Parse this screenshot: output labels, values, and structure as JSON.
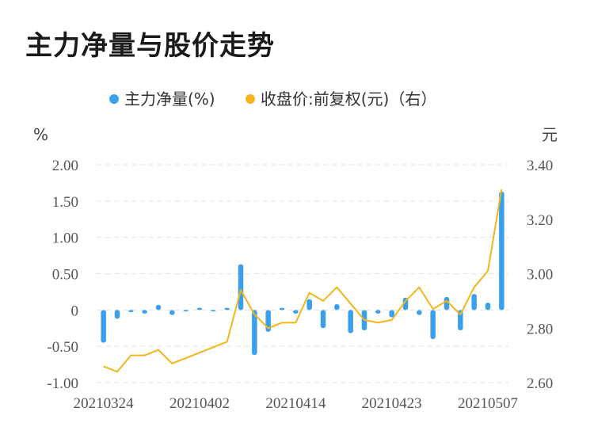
{
  "title": "主力净量与股价走势",
  "legend": {
    "net": "主力净量(%)",
    "price": "收盘价:前复权(元)（右）"
  },
  "colors": {
    "bar": "#3aa0ee",
    "line": "#f2b51c",
    "grid": "#e3e3e3"
  },
  "chart_data": {
    "type": "bar",
    "left_unit": "%",
    "right_unit": "元",
    "x_tick_labels": [
      "20210324",
      "20210402",
      "20210414",
      "20210423",
      "20210507"
    ],
    "x_tick_index": [
      0,
      7,
      14,
      21,
      28
    ],
    "y_left_ticks": [
      "2.00",
      "1.50",
      "1.00",
      "0.50",
      "0",
      "-0.50",
      "-1.00"
    ],
    "y_left_range": [
      -1.0,
      2.0
    ],
    "y_right_ticks": [
      "3.40",
      "3.20",
      "3.00",
      "2.80",
      "2.60"
    ],
    "y_right_range": [
      2.6,
      3.4
    ],
    "series": [
      {
        "name": "主力净量(%)",
        "type": "bar",
        "axis": "left",
        "values": [
          -0.45,
          -0.12,
          -0.03,
          -0.05,
          0.07,
          -0.07,
          -0.02,
          0.03,
          -0.02,
          0.03,
          0.63,
          -0.62,
          -0.3,
          0.03,
          -0.05,
          0.15,
          -0.25,
          0.08,
          -0.32,
          -0.28,
          -0.05,
          -0.1,
          0.17,
          -0.07,
          -0.4,
          0.18,
          -0.28,
          0.22,
          0.1,
          1.63
        ]
      },
      {
        "name": "收盘价:前复权(元)（右）",
        "type": "line",
        "axis": "right",
        "values": [
          2.66,
          2.64,
          2.7,
          2.7,
          2.72,
          2.67,
          null,
          null,
          null,
          2.75,
          2.94,
          2.85,
          2.8,
          2.82,
          2.82,
          2.93,
          2.9,
          2.95,
          2.89,
          2.83,
          2.82,
          2.83,
          2.9,
          2.95,
          2.87,
          2.9,
          2.85,
          2.95,
          3.01,
          3.31
        ]
      }
    ]
  }
}
